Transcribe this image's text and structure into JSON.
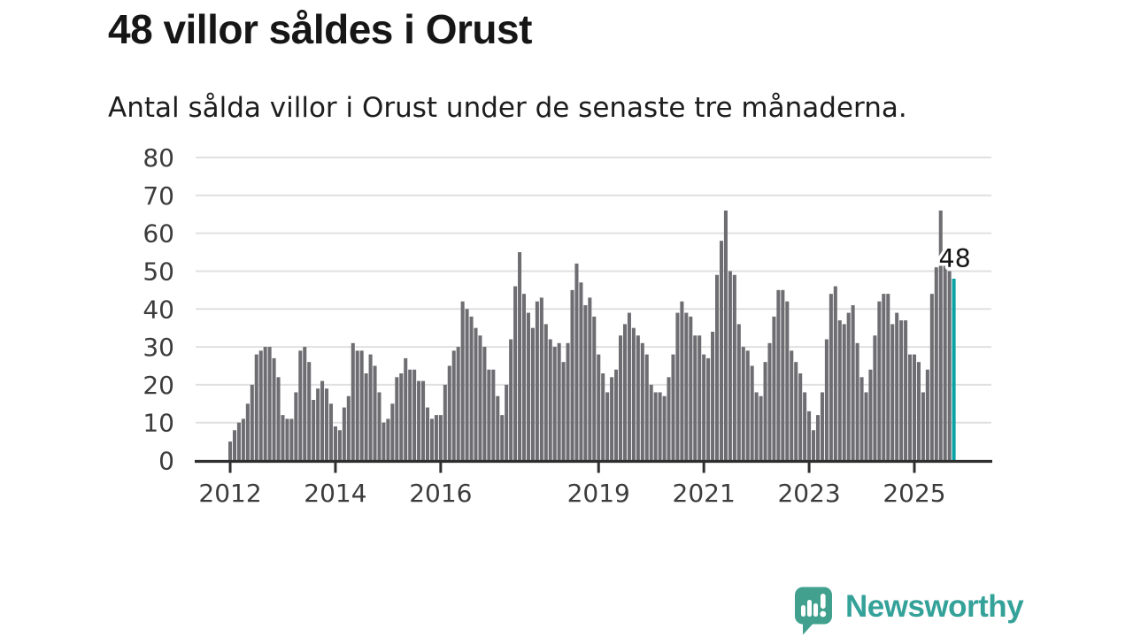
{
  "header": {
    "title": "48 villor såldes i Orust",
    "subtitle": "Antal sålda villor i Orust under de senaste tre månaderna."
  },
  "chart_data": {
    "type": "bar",
    "title": "48 villor såldes i Orust",
    "subtitle": "Antal sålda villor i Orust under de senaste tre månaderna.",
    "frequency": "monthly",
    "start_year": 2012,
    "start_month": 1,
    "values": [
      5,
      8,
      10,
      11,
      15,
      20,
      28,
      29,
      30,
      30,
      27,
      22,
      12,
      11,
      11,
      18,
      29,
      30,
      26,
      16,
      19,
      21,
      19,
      15,
      9,
      8,
      14,
      17,
      31,
      29,
      29,
      23,
      28,
      25,
      18,
      10,
      11,
      15,
      22,
      23,
      27,
      24,
      24,
      21,
      21,
      14,
      11,
      12,
      12,
      20,
      25,
      29,
      30,
      42,
      40,
      38,
      35,
      33,
      30,
      24,
      24,
      17,
      12,
      20,
      32,
      46,
      55,
      44,
      39,
      35,
      42,
      43,
      36,
      32,
      30,
      31,
      26,
      31,
      45,
      52,
      47,
      41,
      43,
      38,
      28,
      23,
      18,
      22,
      24,
      33,
      36,
      39,
      35,
      33,
      31,
      28,
      20,
      18,
      18,
      17,
      22,
      28,
      39,
      42,
      39,
      38,
      33,
      33,
      28,
      27,
      34,
      49,
      58,
      66,
      50,
      49,
      36,
      30,
      29,
      25,
      18,
      17,
      26,
      31,
      38,
      45,
      45,
      42,
      29,
      26,
      23,
      18,
      13,
      8,
      12,
      18,
      32,
      44,
      46,
      37,
      36,
      39,
      41,
      31,
      22,
      18,
      24,
      33,
      42,
      44,
      44,
      36,
      39,
      37,
      37,
      28,
      28,
      26,
      18,
      24,
      44,
      51,
      66,
      52,
      50,
      48
    ],
    "ylim": [
      0,
      80
    ],
    "y_ticks": [
      0,
      10,
      20,
      30,
      40,
      50,
      60,
      70,
      80
    ],
    "x_tick_years": [
      2012,
      2014,
      2016,
      2019,
      2021,
      2023,
      2025
    ],
    "grid": true,
    "legend": "none",
    "annotation": {
      "text": "48",
      "value": 48,
      "target": "last-bar"
    },
    "colors": {
      "bar": "#6e6e72",
      "highlight": "#0aa3a5",
      "grid": "#e0e0e0",
      "axis": "#2f2f2f",
      "tick_label": "#3c3c3c",
      "annotation_text": "#141414",
      "annotation_halo": "#ffffff"
    }
  },
  "footer": {
    "brand": "Newsworthy",
    "brand_color": "#35a29a",
    "bubble_color": "#41a18e",
    "glyph_color": "#ffffff"
  }
}
